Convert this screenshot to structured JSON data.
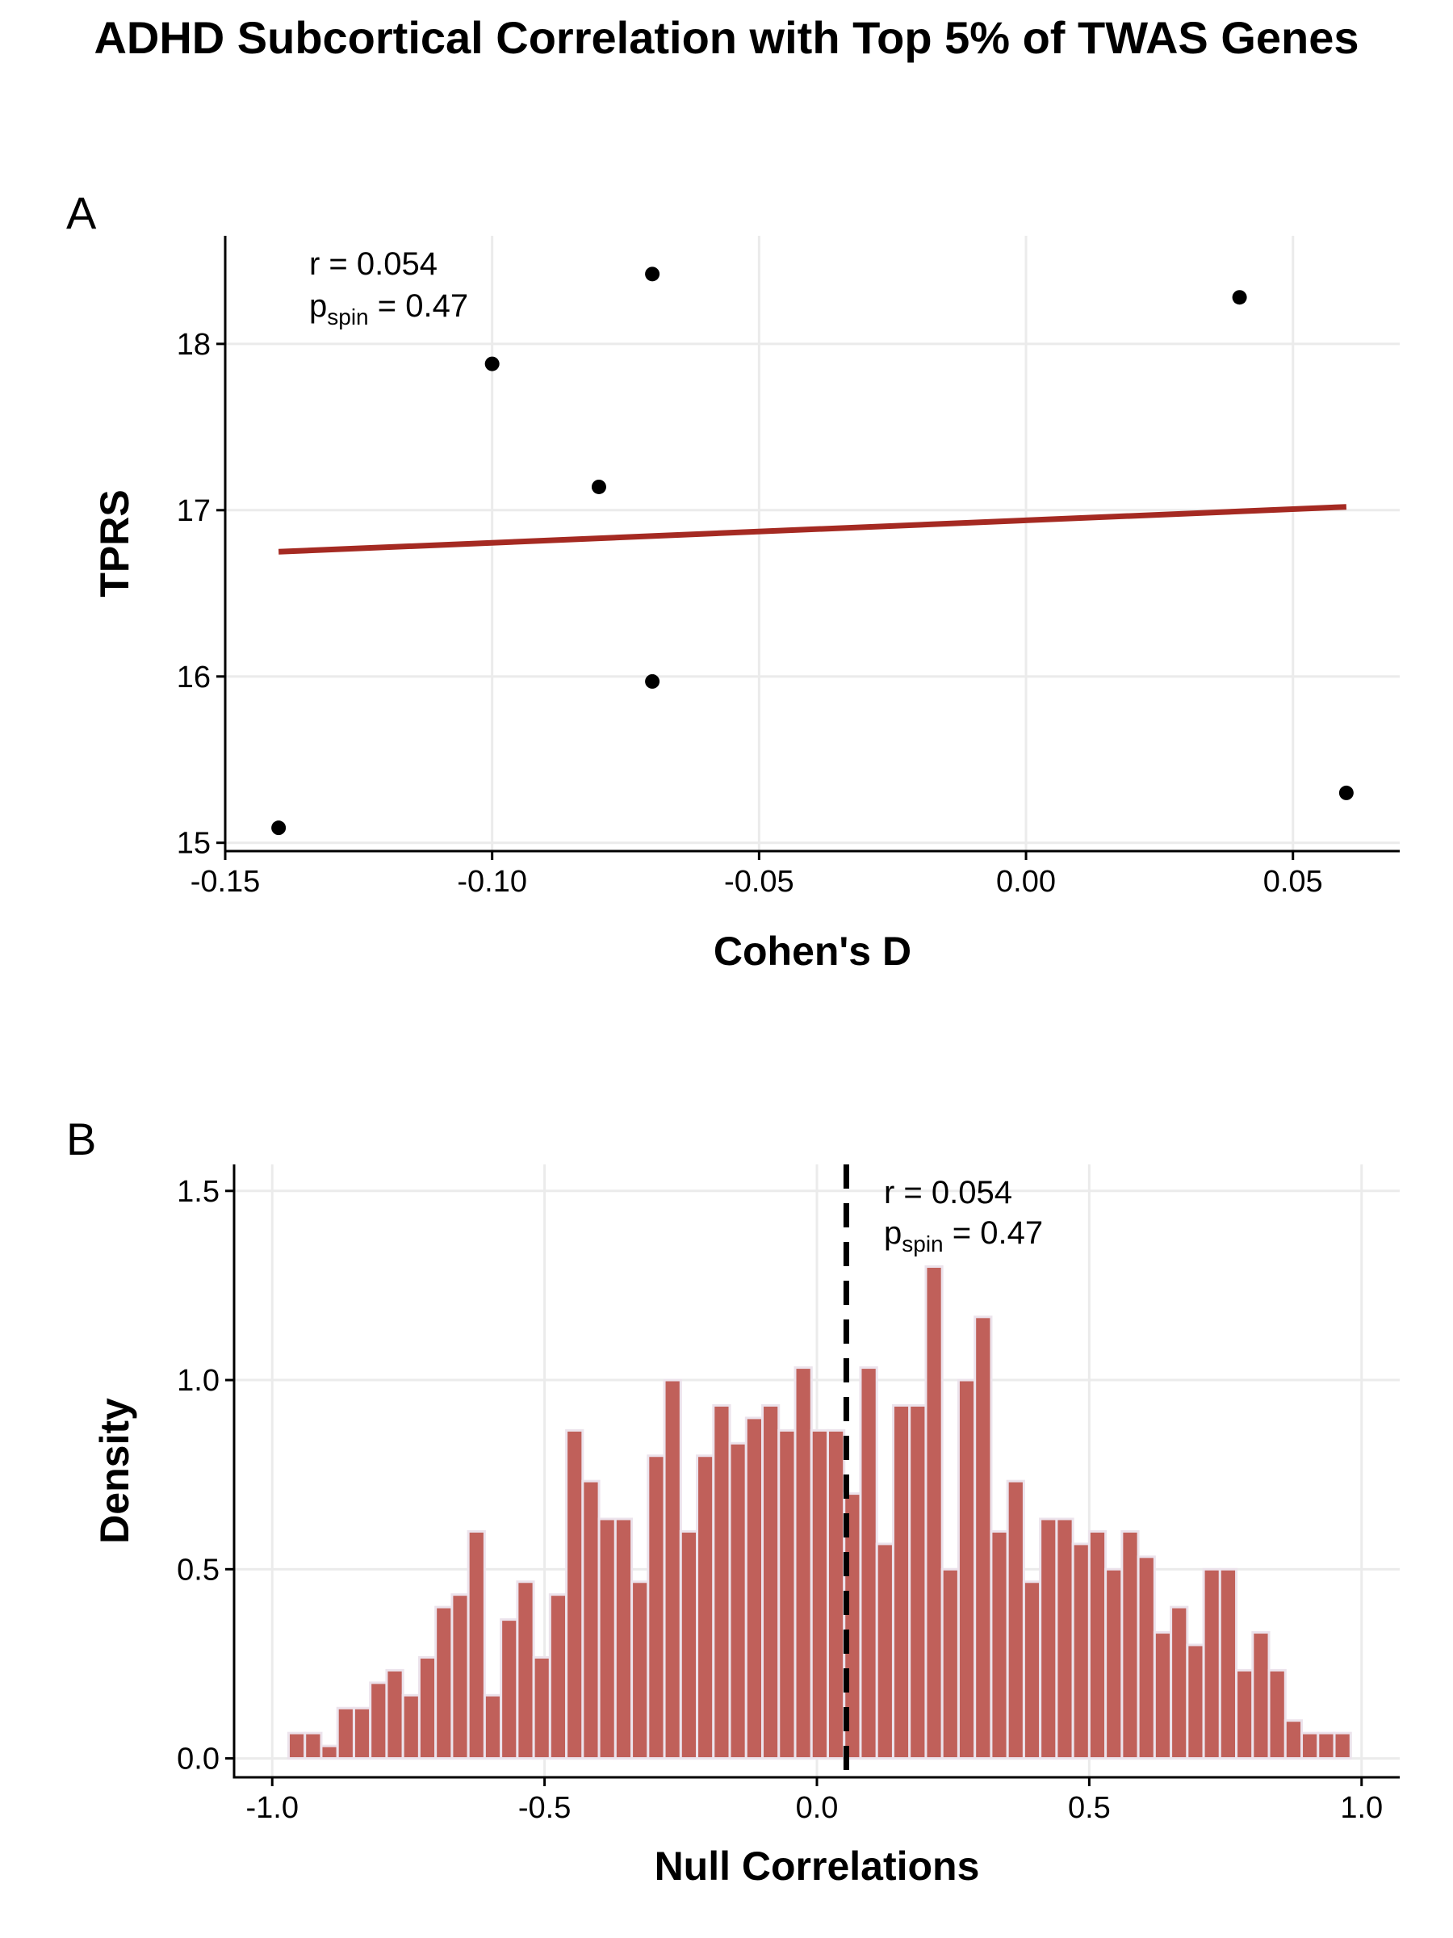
{
  "title": "ADHD Subcortical Correlation with Top 5% of TWAS Genes",
  "colors": {
    "fit_line": "#a52a22",
    "bar_fill": "#c0605a",
    "bar_edge": "#ece3ec",
    "grid": "#ebebeb",
    "points": "#000000"
  },
  "chart_data": [
    {
      "panel_label": "A",
      "type": "scatter",
      "xlabel": "Cohen's D",
      "ylabel": "TPRS",
      "xlim": [
        -0.15,
        0.07
      ],
      "ylim": [
        14.95,
        18.65
      ],
      "xticks": [
        -0.15,
        -0.1,
        -0.05,
        0.0,
        0.05
      ],
      "xtick_labels": [
        "-0.15",
        "-0.10",
        "-0.05",
        "0.00",
        "0.05"
      ],
      "yticks": [
        15,
        16,
        17,
        18
      ],
      "ytick_labels": [
        "15",
        "16",
        "17",
        "18"
      ],
      "grid": true,
      "points": [
        {
          "x": -0.14,
          "y": 15.09
        },
        {
          "x": -0.1,
          "y": 17.88
        },
        {
          "x": -0.08,
          "y": 17.14
        },
        {
          "x": -0.07,
          "y": 18.42
        },
        {
          "x": -0.07,
          "y": 15.97
        },
        {
          "x": 0.04,
          "y": 18.28
        },
        {
          "x": 0.06,
          "y": 15.3
        }
      ],
      "fit_line": {
        "x": [
          -0.14,
          0.06
        ],
        "y": [
          16.75,
          17.02
        ]
      },
      "annotation": {
        "r_text": "r = 0.054",
        "p_main": "p",
        "p_sub": "spin",
        "p_rest": " = 0.47"
      }
    },
    {
      "panel_label": "B",
      "type": "bar",
      "subtype": "histogram",
      "xlabel": "Null Correlations",
      "ylabel": "Density",
      "xlim": [
        -1.07,
        1.07
      ],
      "ylim": [
        -0.05,
        1.57
      ],
      "xticks": [
        -1.0,
        -0.5,
        0.0,
        0.5,
        1.0
      ],
      "xtick_labels": [
        "-1.0",
        "-0.5",
        "0.0",
        "0.5",
        "1.0"
      ],
      "yticks": [
        0.0,
        0.5,
        1.0,
        1.5
      ],
      "ytick_labels": [
        "0.0",
        "0.5",
        "1.0",
        "1.5"
      ],
      "grid": true,
      "bin_start": -0.97,
      "bin_width": 0.03,
      "values": [
        0.067,
        0.067,
        0.033,
        0.133,
        0.133,
        0.2,
        0.233,
        0.167,
        0.267,
        0.4,
        0.433,
        0.6,
        0.167,
        0.367,
        0.467,
        0.267,
        0.433,
        0.867,
        0.733,
        0.633,
        0.633,
        0.467,
        0.8,
        1.0,
        0.6,
        0.8,
        0.933,
        0.833,
        0.9,
        0.933,
        0.867,
        1.033,
        0.867,
        0.867,
        0.7,
        1.033,
        0.567,
        0.933,
        0.933,
        1.3,
        0.5,
        1.0,
        1.167,
        0.6,
        0.733,
        0.467,
        0.633,
        0.633,
        0.567,
        0.6,
        0.5,
        0.6,
        0.533,
        0.333,
        0.4,
        0.3,
        0.5,
        0.5,
        0.233,
        0.333,
        0.233,
        0.1,
        0.067,
        0.067,
        0.067
      ],
      "observed_line": {
        "x": 0.054
      },
      "annotation": {
        "r_text": "r = 0.054",
        "p_main": "p",
        "p_sub": "spin",
        "p_rest": " = 0.47"
      }
    }
  ]
}
